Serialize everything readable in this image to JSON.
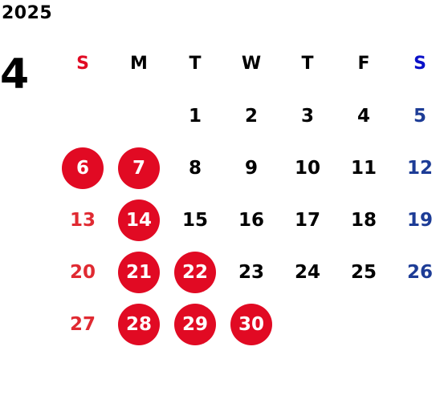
{
  "calendar": {
    "year": "2025",
    "month": "4",
    "weekday_headers": [
      "S",
      "M",
      "T",
      "W",
      "T",
      "F",
      "S"
    ],
    "header_colors": [
      "#e10a23",
      "#000000",
      "#000000",
      "#000000",
      "#000000",
      "#000000",
      "#0a10c8"
    ],
    "first_weekday_index": 2,
    "days_in_month": 30,
    "holidays": [
      6,
      7,
      14,
      21,
      22,
      28,
      29,
      30
    ],
    "colors": {
      "sunday": "#e02a32",
      "saturday": "#1d3c96",
      "weekday": "#000000",
      "holiday_fill": "#e10a23",
      "holiday_text": "#ffffff"
    }
  }
}
